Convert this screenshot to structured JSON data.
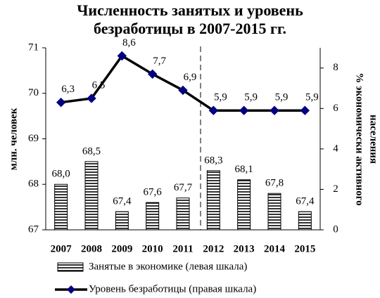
{
  "chart_data": {
    "type": "bar-line",
    "title": [
      "Численность занятых и уровень",
      "безработицы в 2007-2015 гг."
    ],
    "ylabel": "млн. человек",
    "y2label": [
      "% экономически активного",
      "населения"
    ],
    "categories": [
      "2007",
      "2008",
      "2009",
      "2010",
      "2011",
      "2012",
      "2013",
      "2014",
      "2015"
    ],
    "series": [
      {
        "name": "Занятые в экономике (левая шкала)",
        "type": "bar",
        "color": "#000000",
        "values": [
          68.0,
          68.5,
          67.4,
          67.6,
          67.7,
          68.3,
          68.1,
          67.8,
          67.4
        ],
        "value_labels": [
          "68,0",
          "68,5",
          "67,4",
          "67,6",
          "67,7",
          "68,3",
          "68,1",
          "67,8",
          "67,4"
        ]
      },
      {
        "name": "Уровень безработицы (правая шкала)",
        "type": "line",
        "axis": "y2",
        "color": "#000080",
        "values": [
          6.3,
          6.5,
          8.6,
          7.7,
          6.9,
          5.9,
          5.9,
          5.9,
          5.9
        ],
        "value_labels": [
          "6,3",
          "6,5",
          "8,6",
          "7,7",
          "6,9",
          "5,9",
          "5,9",
          "5,9",
          "5,9"
        ]
      }
    ],
    "ylim": [
      67,
      71
    ],
    "yticks": [
      67,
      68,
      69,
      70,
      71
    ],
    "y2lim": [
      0,
      9
    ],
    "y2ticks": [
      0,
      2,
      4,
      6,
      8
    ],
    "grid": false,
    "legend": "bottom"
  }
}
